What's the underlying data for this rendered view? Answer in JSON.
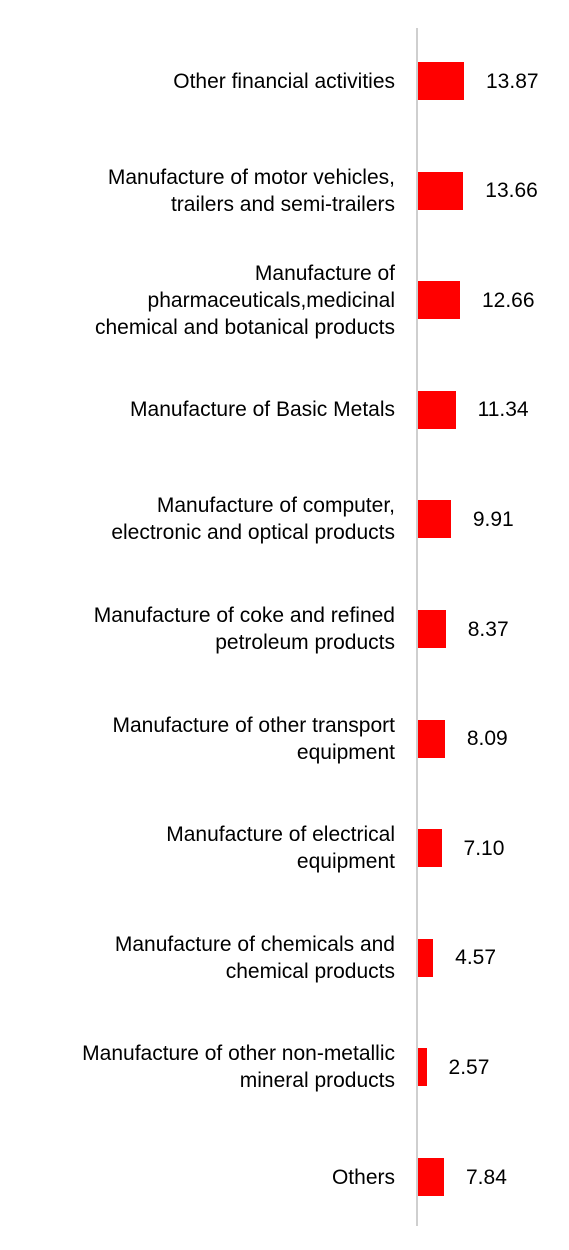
{
  "chart_data": {
    "type": "bar",
    "orientation": "horizontal",
    "categories": [
      "Other financial activities",
      "Manufacture of motor vehicles,\ntrailers and semi-trailers",
      "Manufacture of\npharmaceuticals,medicinal\nchemical and botanical products",
      "Manufacture of Basic Metals",
      "Manufacture of computer,\nelectronic and optical products",
      "Manufacture of coke and refined\npetroleum products",
      "Manufacture of other transport\nequipment",
      "Manufacture of electrical\nequipment",
      "Manufacture of chemicals and\nchemical products",
      "Manufacture of other non-metallic\nmineral products",
      "Others"
    ],
    "values": [
      13.87,
      13.66,
      12.66,
      11.34,
      9.91,
      8.37,
      8.09,
      7.1,
      4.57,
      2.57,
      7.84
    ],
    "value_labels": [
      "13.87",
      "13.66",
      "12.66",
      "11.34",
      "9.91",
      "8.37",
      "8.09",
      "7.10",
      "4.57",
      "2.57",
      "7.84"
    ],
    "title": "",
    "xlabel": "",
    "ylabel": "",
    "grid": false,
    "legend": "none",
    "colors": {
      "bar": "#ff0000",
      "axis": "#cfcfcf",
      "text": "#000000"
    }
  }
}
